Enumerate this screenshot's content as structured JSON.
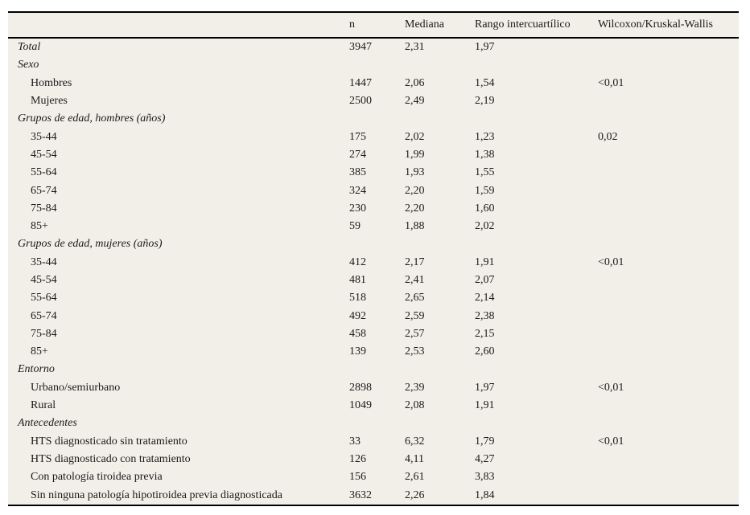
{
  "colors": {
    "table_background": "#f2efe8",
    "page_background": "#ffffff",
    "rule": "#000000",
    "text": "#1a1a1a"
  },
  "table": {
    "columns": [
      "",
      "n",
      "Mediana",
      "Rango intercuartílico",
      "Wilcoxon/Kruskal-Wallis"
    ],
    "rows": [
      {
        "kind": "section",
        "label": "Total",
        "n": "3947",
        "mediana": "2,31",
        "rango": "1,97",
        "p": ""
      },
      {
        "kind": "section",
        "label": "Sexo",
        "n": "",
        "mediana": "",
        "rango": "",
        "p": ""
      },
      {
        "kind": "item",
        "label": "Hombres",
        "n": "1447",
        "mediana": "2,06",
        "rango": "1,54",
        "p": "<0,01"
      },
      {
        "kind": "item",
        "label": "Mujeres",
        "n": "2500",
        "mediana": "2,49",
        "rango": "2,19",
        "p": ""
      },
      {
        "kind": "section",
        "label": "Grupos de edad, hombres (años)",
        "n": "",
        "mediana": "",
        "rango": "",
        "p": ""
      },
      {
        "kind": "item",
        "label": "35-44",
        "n": "175",
        "mediana": "2,02",
        "rango": "1,23",
        "p": "0,02"
      },
      {
        "kind": "item",
        "label": "45-54",
        "n": "274",
        "mediana": "1,99",
        "rango": "1,38",
        "p": ""
      },
      {
        "kind": "item",
        "label": "55-64",
        "n": "385",
        "mediana": "1,93",
        "rango": "1,55",
        "p": ""
      },
      {
        "kind": "item",
        "label": "65-74",
        "n": "324",
        "mediana": "2,20",
        "rango": "1,59",
        "p": ""
      },
      {
        "kind": "item",
        "label": "75-84",
        "n": "230",
        "mediana": "2,20",
        "rango": "1,60",
        "p": ""
      },
      {
        "kind": "item",
        "label": "85+",
        "n": "59",
        "mediana": "1,88",
        "rango": "2,02",
        "p": ""
      },
      {
        "kind": "section",
        "label": "Grupos de edad, mujeres (años)",
        "n": "",
        "mediana": "",
        "rango": "",
        "p": ""
      },
      {
        "kind": "item",
        "label": "35-44",
        "n": "412",
        "mediana": "2,17",
        "rango": "1,91",
        "p": "<0,01"
      },
      {
        "kind": "item",
        "label": "45-54",
        "n": "481",
        "mediana": "2,41",
        "rango": "2,07",
        "p": ""
      },
      {
        "kind": "item",
        "label": "55-64",
        "n": "518",
        "mediana": "2,65",
        "rango": "2,14",
        "p": ""
      },
      {
        "kind": "item",
        "label": "65-74",
        "n": "492",
        "mediana": "2,59",
        "rango": "2,38",
        "p": ""
      },
      {
        "kind": "item",
        "label": "75-84",
        "n": "458",
        "mediana": "2,57",
        "rango": "2,15",
        "p": ""
      },
      {
        "kind": "item",
        "label": "85+",
        "n": "139",
        "mediana": "2,53",
        "rango": "2,60",
        "p": ""
      },
      {
        "kind": "section",
        "label": "Entorno",
        "n": "",
        "mediana": "",
        "rango": "",
        "p": ""
      },
      {
        "kind": "item",
        "label": "Urbano/semiurbano",
        "n": "2898",
        "mediana": "2,39",
        "rango": "1,97",
        "p": "<0,01"
      },
      {
        "kind": "item",
        "label": "Rural",
        "n": "1049",
        "mediana": "2,08",
        "rango": "1,91",
        "p": ""
      },
      {
        "kind": "section",
        "label": "Antecedentes",
        "n": "",
        "mediana": "",
        "rango": "",
        "p": ""
      },
      {
        "kind": "item",
        "label": "HTS diagnosticado sin tratamiento",
        "n": "33",
        "mediana": "6,32",
        "rango": "1,79",
        "p": "<0,01"
      },
      {
        "kind": "item",
        "label": "HTS diagnosticado con tratamiento",
        "n": "126",
        "mediana": "4,11",
        "rango": "4,27",
        "p": ""
      },
      {
        "kind": "item",
        "label": "Con patología tiroidea previa",
        "n": "156",
        "mediana": "2,61",
        "rango": "3,83",
        "p": ""
      },
      {
        "kind": "item",
        "label": "Sin ninguna patología hipotiroidea previa diagnosticada",
        "n": "3632",
        "mediana": "2,26",
        "rango": "1,84",
        "p": ""
      }
    ]
  }
}
